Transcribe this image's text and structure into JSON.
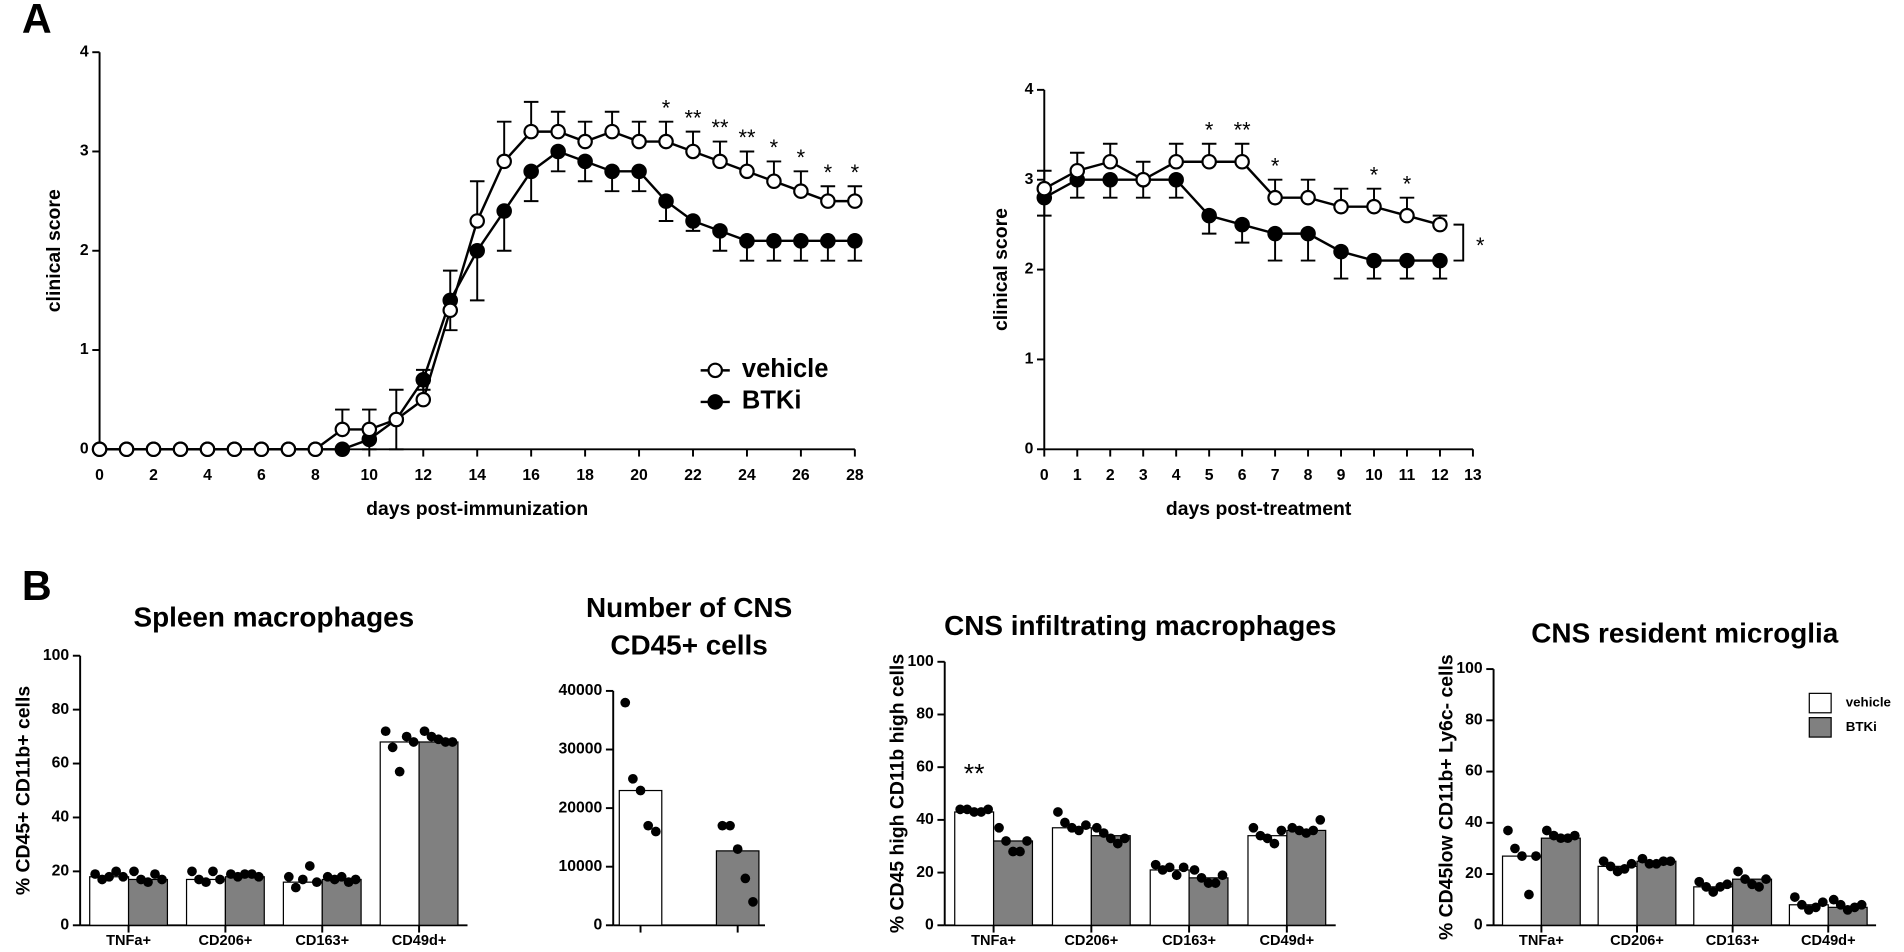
{
  "panels": [
    "A",
    "B"
  ],
  "chart_data": [
    {
      "type": "line",
      "xlabel": "days post-immunization",
      "ylabel": "clinical score",
      "x": [
        0,
        1,
        2,
        3,
        4,
        5,
        6,
        7,
        8,
        9,
        10,
        11,
        12,
        13,
        14,
        15,
        16,
        17,
        18,
        19,
        20,
        21,
        22,
        23,
        24,
        25,
        26,
        27,
        28
      ],
      "xlim": [
        0,
        28
      ],
      "xticks": [
        0,
        2,
        4,
        6,
        8,
        10,
        12,
        14,
        16,
        18,
        20,
        22,
        24,
        26,
        28
      ],
      "ylim": [
        0,
        4
      ],
      "yticks": [
        0,
        1,
        2,
        3,
        4
      ],
      "legend": "lower right",
      "series": [
        {
          "name": "vehicle",
          "color": "#ffffff",
          "error_direction": "up",
          "values": [
            0,
            0,
            0,
            0,
            0,
            0,
            0,
            0,
            0,
            0.2,
            0.2,
            0.3,
            0.5,
            1.4,
            2.3,
            2.9,
            3.2,
            3.2,
            3.1,
            3.2,
            3.1,
            3.1,
            3.0,
            2.9,
            2.8,
            2.7,
            2.6,
            2.5,
            2.5
          ],
          "errors": [
            0,
            0,
            0,
            0,
            0,
            0,
            0,
            0,
            0,
            0.2,
            0.2,
            0.3,
            0.3,
            0.4,
            0.4,
            0.4,
            0.3,
            0.2,
            0.2,
            0.2,
            0.2,
            0.2,
            0.2,
            0.2,
            0.2,
            0.2,
            0.2,
            0.15,
            0.15
          ]
        },
        {
          "name": "BTKi",
          "color": "#000000",
          "error_direction": "down",
          "values": [
            0,
            0,
            0,
            0,
            0,
            0,
            0,
            0,
            0,
            0,
            0.1,
            0.3,
            0.7,
            1.5,
            2.0,
            2.4,
            2.8,
            3.0,
            2.9,
            2.8,
            2.8,
            2.5,
            2.3,
            2.2,
            2.1,
            2.1,
            2.1,
            2.1,
            2.1
          ],
          "errors": [
            0,
            0,
            0,
            0,
            0,
            0,
            0,
            0,
            0,
            0,
            0.1,
            0.3,
            0.1,
            0.3,
            0.5,
            0.4,
            0.3,
            0.2,
            0.2,
            0.2,
            0.2,
            0.2,
            0.1,
            0.2,
            0.2,
            0.2,
            0.2,
            0.2,
            0.2
          ]
        }
      ],
      "annotations": [
        {
          "x": 21,
          "text": "*"
        },
        {
          "x": 22,
          "text": "**"
        },
        {
          "x": 23,
          "text": "**"
        },
        {
          "x": 24,
          "text": "**"
        },
        {
          "x": 25,
          "text": "*"
        },
        {
          "x": 26,
          "text": "*"
        },
        {
          "x": 27,
          "text": "*"
        },
        {
          "x": 28,
          "text": "*"
        }
      ]
    },
    {
      "type": "line",
      "xlabel": "days post-treatment",
      "ylabel": "clinical score",
      "x": [
        0,
        1,
        2,
        3,
        4,
        5,
        6,
        7,
        8,
        9,
        10,
        11,
        12
      ],
      "xlim": [
        0,
        13
      ],
      "xticks": [
        0,
        1,
        2,
        3,
        4,
        5,
        6,
        7,
        8,
        9,
        10,
        11,
        12,
        13
      ],
      "ylim": [
        0,
        4
      ],
      "yticks": [
        0,
        1,
        2,
        3,
        4
      ],
      "series": [
        {
          "name": "vehicle",
          "color": "#ffffff",
          "error_direction": "up",
          "values": [
            2.9,
            3.1,
            3.2,
            3.0,
            3.2,
            3.2,
            3.2,
            2.8,
            2.8,
            2.7,
            2.7,
            2.6,
            2.5
          ],
          "errors": [
            0.2,
            0.2,
            0.2,
            0.2,
            0.2,
            0.2,
            0.2,
            0.2,
            0.2,
            0.2,
            0.2,
            0.2,
            0.1
          ]
        },
        {
          "name": "BTKi",
          "color": "#000000",
          "error_direction": "down",
          "values": [
            2.8,
            3.0,
            3.0,
            3.0,
            3.0,
            2.6,
            2.5,
            2.4,
            2.4,
            2.2,
            2.1,
            2.1,
            2.1
          ],
          "errors": [
            0.2,
            0.2,
            0.2,
            0.2,
            0.2,
            0.2,
            0.2,
            0.3,
            0.3,
            0.3,
            0.2,
            0.2,
            0.2
          ]
        }
      ],
      "annotations": [
        {
          "x": 5,
          "text": "*"
        },
        {
          "x": 6,
          "text": "**"
        },
        {
          "x": 7,
          "text": "*"
        },
        {
          "x": 10,
          "text": "*"
        },
        {
          "x": 11,
          "text": "*"
        }
      ],
      "bracket_label": "*"
    },
    {
      "type": "bar",
      "title": [
        "Spleen macrophages"
      ],
      "ylabel": "% CD45+ CD11b+ cells",
      "categories": [
        "TNFa+",
        "CD206+",
        "CD163+",
        "CD49d+"
      ],
      "ylim": [
        0,
        100
      ],
      "yticks": [
        0,
        20,
        40,
        60,
        80,
        100
      ],
      "series": [
        {
          "name": "vehicle",
          "color": "#ffffff",
          "values": [
            18,
            17,
            16,
            68
          ],
          "points": [
            [
              19,
              17,
              18,
              20,
              18
            ],
            [
              20,
              17,
              16,
              20,
              17
            ],
            [
              18,
              14,
              17,
              22,
              16
            ],
            [
              72,
              66,
              57,
              70,
              68
            ]
          ]
        },
        {
          "name": "BTKi",
          "color": "#808080",
          "values": [
            17,
            18,
            17,
            68
          ],
          "points": [
            [
              20,
              17,
              16,
              19,
              17
            ],
            [
              19,
              18,
              19,
              19,
              18
            ],
            [
              18,
              17,
              18,
              16,
              17
            ],
            [
              72,
              70,
              69,
              68,
              68
            ]
          ]
        }
      ]
    },
    {
      "type": "bar",
      "title": [
        "Number of CNS",
        "CD45+ cells"
      ],
      "categories": [
        null
      ],
      "ylim": [
        0,
        40000
      ],
      "yticks": [
        0,
        10000,
        20000,
        30000,
        40000
      ],
      "series": [
        {
          "name": "vehicle",
          "color": "#ffffff",
          "values": [
            23000
          ],
          "points": [
            [
              38000,
              25000,
              23000,
              17000,
              16000
            ]
          ]
        },
        {
          "name": "BTKi",
          "color": "#808080",
          "values": [
            12700
          ],
          "points": [
            [
              17000,
              17000,
              13000,
              8000,
              4000
            ]
          ]
        }
      ]
    },
    {
      "type": "bar",
      "title": [
        "CNS infiltrating macrophages"
      ],
      "ylabel": "% CD45 high CD11b high cells",
      "categories": [
        "TNFa+",
        "CD206+",
        "CD163+",
        "CD49d+"
      ],
      "ylim": [
        0,
        100
      ],
      "yticks": [
        0,
        20,
        40,
        60,
        80,
        100
      ],
      "series": [
        {
          "name": "vehicle",
          "color": "#ffffff",
          "values": [
            43,
            37,
            21,
            34
          ],
          "points": [
            [
              44,
              44,
              43,
              43,
              44
            ],
            [
              43,
              39,
              37,
              36,
              38
            ],
            [
              23,
              21,
              22,
              19,
              22
            ],
            [
              37,
              34,
              33,
              31,
              36
            ]
          ]
        },
        {
          "name": "BTKi",
          "color": "#808080",
          "values": [
            32,
            34,
            18,
            36
          ],
          "points": [
            [
              37,
              32,
              28,
              28,
              32
            ],
            [
              37,
              35,
              33,
              31,
              33
            ],
            [
              21,
              18,
              16,
              16,
              19
            ],
            [
              37,
              36,
              35,
              36,
              40
            ]
          ]
        }
      ],
      "annotations": [
        {
          "category": 0,
          "text": "**"
        }
      ]
    },
    {
      "type": "bar",
      "title": [
        "CNS resident microglia"
      ],
      "ylabel": "% CD45low CD11b+ Ly6c- cells",
      "categories": [
        "TNFa+",
        "CD206+",
        "CD163+",
        "CD49d+"
      ],
      "ylim": [
        0,
        100
      ],
      "yticks": [
        0,
        20,
        40,
        60,
        80,
        100
      ],
      "legend": "upper right",
      "series": [
        {
          "name": "vehicle",
          "color": "#ffffff",
          "values": [
            27,
            23,
            15,
            8
          ],
          "points": [
            [
              37,
              30,
              27,
              12,
              27
            ],
            [
              25,
              23,
              21,
              22,
              24
            ],
            [
              17,
              15,
              13,
              15,
              16
            ],
            [
              11,
              8,
              6,
              7,
              9
            ]
          ]
        },
        {
          "name": "BTKi",
          "color": "#808080",
          "values": [
            34,
            25,
            18,
            7
          ],
          "points": [
            [
              37,
              35,
              34,
              34,
              35
            ],
            [
              26,
              24,
              24,
              25,
              25
            ],
            [
              21,
              18,
              16,
              15,
              18
            ],
            [
              10,
              8,
              6,
              7,
              8
            ]
          ]
        }
      ]
    }
  ]
}
